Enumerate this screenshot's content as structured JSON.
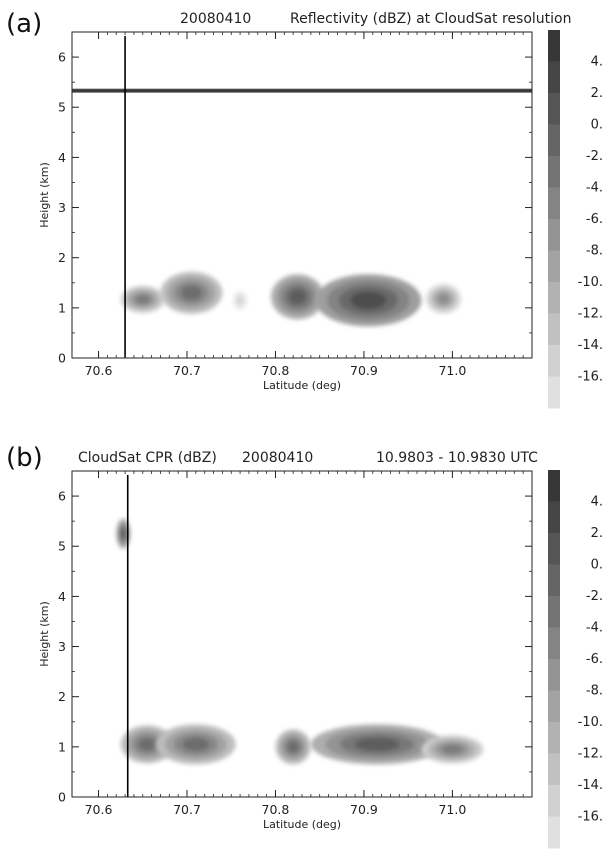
{
  "chart_data": [
    {
      "panel_label": "(a)",
      "title_parts": [
        "20080410",
        "Reflectivity (dBZ) at CloudSat resolution"
      ],
      "type": "heatmap",
      "xlabel": "Latitude (deg)",
      "ylabel": "Height (km)",
      "xlim": [
        70.57,
        71.09
      ],
      "ylim": [
        0,
        6.5
      ],
      "xticks": [
        "70.6",
        "70.7",
        "70.8",
        "70.9",
        "71.0"
      ],
      "yticks": [
        "0",
        "1",
        "2",
        "3",
        "4",
        "5",
        "6"
      ],
      "marker_line_lat": 70.63,
      "features": [
        {
          "kind": "thin-layer",
          "lat": [
            70.57,
            71.09
          ],
          "height": 5.33,
          "dbz": 2
        },
        {
          "kind": "blob",
          "lat": 70.65,
          "height": 1.17,
          "rlat": 0.025,
          "rh": 0.27,
          "dbz": -4
        },
        {
          "kind": "blob",
          "lat": 70.705,
          "height": 1.3,
          "rlat": 0.035,
          "rh": 0.42,
          "dbz": -2
        },
        {
          "kind": "blob",
          "lat": 70.76,
          "height": 1.15,
          "rlat": 0.008,
          "rh": 0.18,
          "dbz": -14
        },
        {
          "kind": "blob",
          "lat": 70.825,
          "height": 1.22,
          "rlat": 0.03,
          "rh": 0.45,
          "dbz": 0
        },
        {
          "kind": "blob",
          "lat": 70.905,
          "height": 1.15,
          "rlat": 0.06,
          "rh": 0.52,
          "dbz": 2
        },
        {
          "kind": "blob",
          "lat": 70.99,
          "height": 1.18,
          "rlat": 0.02,
          "rh": 0.3,
          "dbz": -6
        }
      ],
      "colorbar": {
        "labels": [
          "4.",
          "2.",
          "0.",
          "-2.",
          "-4.",
          "-6.",
          "-8.",
          "-10.",
          "-12.",
          "-14.",
          "-16."
        ]
      }
    },
    {
      "panel_label": "(b)",
      "title_parts": [
        "CloudSat CPR (dBZ)",
        "20080410",
        "10.9803 - 10.9830 UTC"
      ],
      "type": "heatmap",
      "xlabel": "Latitude (deg)",
      "ylabel": "Height (km)",
      "xlim": [
        70.57,
        71.09
      ],
      "ylim": [
        0,
        6.5
      ],
      "xticks": [
        "70.6",
        "70.7",
        "70.8",
        "70.9",
        "71.0"
      ],
      "yticks": [
        "0",
        "1",
        "2",
        "3",
        "4",
        "5",
        "6"
      ],
      "marker_line_lat": 70.633,
      "features": [
        {
          "kind": "blob",
          "lat": 70.628,
          "height": 5.25,
          "rlat": 0.008,
          "rh": 0.3,
          "dbz": 0
        },
        {
          "kind": "blob",
          "lat": 70.655,
          "height": 1.05,
          "rlat": 0.03,
          "rh": 0.38,
          "dbz": -2
        },
        {
          "kind": "blob",
          "lat": 70.71,
          "height": 1.05,
          "rlat": 0.045,
          "rh": 0.4,
          "dbz": -2
        },
        {
          "kind": "blob",
          "lat": 70.82,
          "height": 1.0,
          "rlat": 0.02,
          "rh": 0.35,
          "dbz": -2
        },
        {
          "kind": "blob",
          "lat": 70.915,
          "height": 1.05,
          "rlat": 0.075,
          "rh": 0.4,
          "dbz": 0
        },
        {
          "kind": "blob",
          "lat": 71.0,
          "height": 0.95,
          "rlat": 0.035,
          "rh": 0.28,
          "dbz": -4
        }
      ],
      "colorbar": {
        "labels": [
          "4.",
          "2.",
          "0.",
          "-2.",
          "-4.",
          "-6.",
          "-8.",
          "-10.",
          "-12.",
          "-14.",
          "-16."
        ]
      }
    }
  ]
}
